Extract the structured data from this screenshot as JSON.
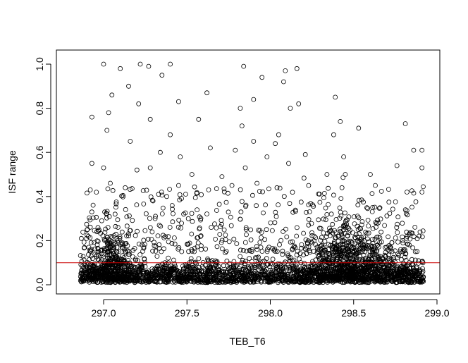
{
  "chart_data": {
    "type": "scatter",
    "title": "",
    "xlabel": "TEB_T6",
    "ylabel": "ISF range",
    "xlim": [
      296.85,
      298.93
    ],
    "ylim": [
      0.0,
      1.0
    ],
    "x_ticks": [
      "297.0",
      "297.5",
      "298.0",
      "298.5",
      "299.0"
    ],
    "x_tick_values": [
      297.0,
      297.5,
      298.0,
      298.5,
      299.0
    ],
    "y_ticks": [
      "0.0",
      "0.2",
      "0.4",
      "0.6",
      "0.8",
      "1.0"
    ],
    "y_tick_values": [
      0.0,
      0.2,
      0.4,
      0.6,
      0.8,
      1.0
    ],
    "reference_line": {
      "y": 0.1,
      "color": "#cc0000"
    },
    "marker": "open-circle",
    "grid": false,
    "legend": "none",
    "points": [
      [
        297.0,
        1.0
      ],
      [
        297.1,
        0.98
      ],
      [
        297.22,
        1.0
      ],
      [
        297.27,
        0.99
      ],
      [
        297.4,
        1.0
      ],
      [
        297.84,
        0.99
      ],
      [
        298.09,
        0.97
      ],
      [
        298.16,
        0.98
      ],
      [
        297.35,
        0.95
      ],
      [
        297.95,
        0.94
      ],
      [
        297.15,
        0.9
      ],
      [
        298.08,
        0.92
      ],
      [
        297.05,
        0.86
      ],
      [
        297.21,
        0.82
      ],
      [
        297.62,
        0.87
      ],
      [
        297.45,
        0.83
      ],
      [
        297.9,
        0.84
      ],
      [
        298.39,
        0.85
      ],
      [
        296.93,
        0.76
      ],
      [
        297.03,
        0.78
      ],
      [
        297.28,
        0.75
      ],
      [
        297.57,
        0.75
      ],
      [
        297.82,
        0.8
      ],
      [
        298.12,
        0.8
      ],
      [
        298.17,
        0.82
      ],
      [
        298.42,
        0.74
      ],
      [
        298.81,
        0.73
      ],
      [
        297.02,
        0.7
      ],
      [
        297.4,
        0.68
      ],
      [
        297.83,
        0.72
      ],
      [
        298.05,
        0.68
      ],
      [
        298.38,
        0.68
      ],
      [
        298.53,
        0.71
      ],
      [
        297.16,
        0.65
      ],
      [
        297.34,
        0.6
      ],
      [
        297.64,
        0.62
      ],
      [
        297.79,
        0.61
      ],
      [
        297.9,
        0.65
      ],
      [
        298.03,
        0.64
      ],
      [
        298.21,
        0.59
      ],
      [
        298.44,
        0.58
      ],
      [
        298.86,
        0.61
      ],
      [
        298.91,
        0.61
      ],
      [
        296.93,
        0.55
      ],
      [
        297.0,
        0.53
      ],
      [
        297.2,
        0.52
      ],
      [
        297.28,
        0.53
      ],
      [
        297.46,
        0.58
      ],
      [
        297.53,
        0.5
      ],
      [
        297.71,
        0.49
      ],
      [
        297.85,
        0.53
      ],
      [
        297.98,
        0.58
      ],
      [
        298.11,
        0.55
      ],
      [
        298.34,
        0.5
      ],
      [
        298.45,
        0.5
      ],
      [
        298.6,
        0.5
      ],
      [
        298.76,
        0.54
      ],
      [
        298.91,
        0.53
      ],
      [
        296.92,
        0.43
      ],
      [
        297.04,
        0.46
      ],
      [
        297.13,
        0.44
      ],
      [
        297.33,
        0.41
      ],
      [
        297.45,
        0.45
      ],
      [
        297.63,
        0.43
      ],
      [
        297.77,
        0.45
      ],
      [
        297.92,
        0.46
      ],
      [
        298.04,
        0.44
      ],
      [
        298.23,
        0.45
      ],
      [
        298.43,
        0.44
      ],
      [
        298.63,
        0.45
      ],
      [
        298.82,
        0.42
      ],
      [
        298.91,
        0.42
      ]
    ],
    "dense_band": {
      "y_range": [
        0.0,
        0.15
      ],
      "x_range": [
        296.86,
        298.92
      ],
      "note": "dense mass of points"
    },
    "clusters": [
      {
        "x_center": 297.05,
        "spread": 0.08,
        "y_max": 0.55
      },
      {
        "x_center": 298.4,
        "spread": 0.1,
        "y_max": 0.55
      },
      {
        "x_center": 298.6,
        "spread": 0.15,
        "y_max": 0.35
      }
    ]
  }
}
